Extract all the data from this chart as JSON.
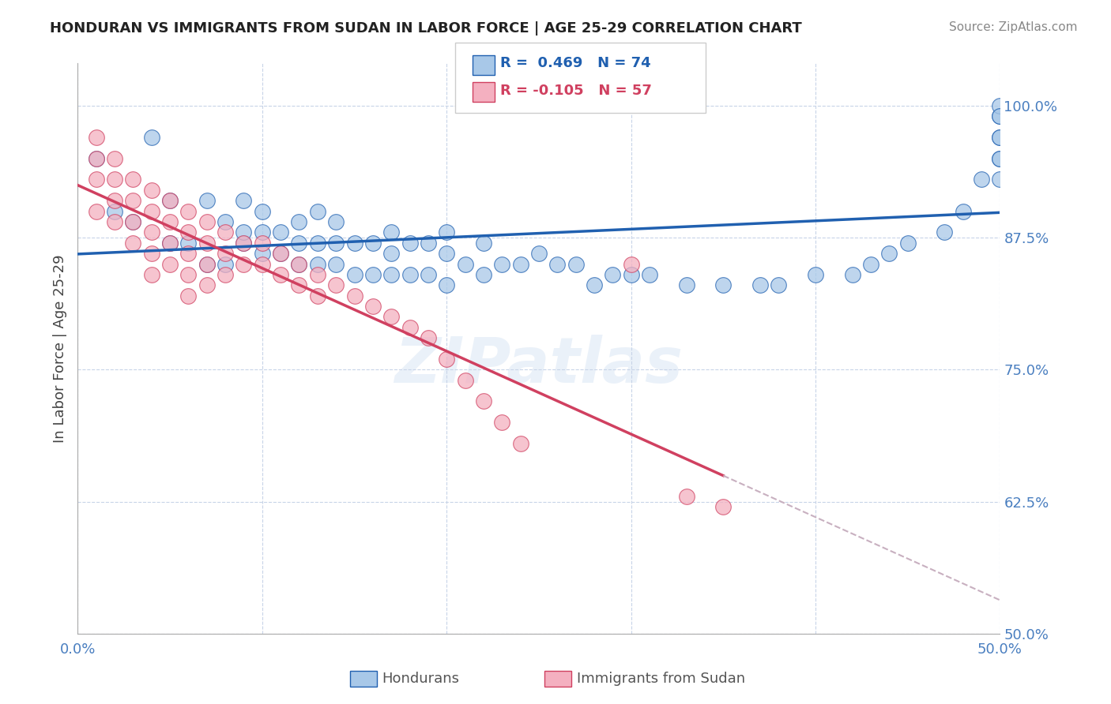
{
  "title": "HONDURAN VS IMMIGRANTS FROM SUDAN IN LABOR FORCE | AGE 25-29 CORRELATION CHART",
  "source": "Source: ZipAtlas.com",
  "ylabel": "In Labor Force | Age 25-29",
  "xlim": [
    0.0,
    0.5
  ],
  "ylim": [
    0.5,
    1.04
  ],
  "xticks": [
    0.0,
    0.1,
    0.2,
    0.3,
    0.4,
    0.5
  ],
  "xtick_labels": [
    "0.0%",
    "",
    "",
    "",
    "",
    "50.0%"
  ],
  "ytick_labels_right": [
    "50.0%",
    "62.5%",
    "75.0%",
    "87.5%",
    "100.0%"
  ],
  "yticks_right": [
    0.5,
    0.625,
    0.75,
    0.875,
    1.0
  ],
  "blue_color": "#a8c8e8",
  "pink_color": "#f4b0c0",
  "blue_line_color": "#2060b0",
  "pink_line_color": "#d04060",
  "dashed_line_color": "#c8b0c0",
  "blue_dots_x": [
    0.01,
    0.02,
    0.03,
    0.04,
    0.05,
    0.05,
    0.06,
    0.07,
    0.07,
    0.08,
    0.08,
    0.09,
    0.09,
    0.09,
    0.1,
    0.1,
    0.1,
    0.11,
    0.11,
    0.12,
    0.12,
    0.12,
    0.13,
    0.13,
    0.13,
    0.14,
    0.14,
    0.14,
    0.15,
    0.15,
    0.16,
    0.16,
    0.17,
    0.17,
    0.17,
    0.18,
    0.18,
    0.19,
    0.19,
    0.2,
    0.2,
    0.2,
    0.21,
    0.22,
    0.22,
    0.23,
    0.24,
    0.25,
    0.26,
    0.27,
    0.28,
    0.29,
    0.3,
    0.31,
    0.33,
    0.35,
    0.37,
    0.38,
    0.4,
    0.42,
    0.43,
    0.44,
    0.45,
    0.47,
    0.48,
    0.49,
    0.5,
    0.5,
    0.5,
    0.5,
    0.5,
    0.5,
    0.5,
    0.5
  ],
  "blue_dots_y": [
    0.95,
    0.9,
    0.89,
    0.97,
    0.87,
    0.91,
    0.87,
    0.85,
    0.91,
    0.85,
    0.89,
    0.87,
    0.88,
    0.91,
    0.86,
    0.88,
    0.9,
    0.86,
    0.88,
    0.85,
    0.87,
    0.89,
    0.85,
    0.87,
    0.9,
    0.85,
    0.87,
    0.89,
    0.84,
    0.87,
    0.84,
    0.87,
    0.84,
    0.86,
    0.88,
    0.84,
    0.87,
    0.84,
    0.87,
    0.83,
    0.86,
    0.88,
    0.85,
    0.84,
    0.87,
    0.85,
    0.85,
    0.86,
    0.85,
    0.85,
    0.83,
    0.84,
    0.84,
    0.84,
    0.83,
    0.83,
    0.83,
    0.83,
    0.84,
    0.84,
    0.85,
    0.86,
    0.87,
    0.88,
    0.9,
    0.93,
    0.95,
    0.97,
    0.99,
    1.0,
    0.99,
    0.97,
    0.95,
    0.93
  ],
  "pink_dots_x": [
    0.01,
    0.01,
    0.01,
    0.01,
    0.02,
    0.02,
    0.02,
    0.02,
    0.03,
    0.03,
    0.03,
    0.03,
    0.04,
    0.04,
    0.04,
    0.04,
    0.04,
    0.05,
    0.05,
    0.05,
    0.05,
    0.06,
    0.06,
    0.06,
    0.06,
    0.06,
    0.07,
    0.07,
    0.07,
    0.07,
    0.08,
    0.08,
    0.08,
    0.09,
    0.09,
    0.1,
    0.1,
    0.11,
    0.11,
    0.12,
    0.12,
    0.13,
    0.13,
    0.14,
    0.15,
    0.16,
    0.17,
    0.18,
    0.19,
    0.2,
    0.21,
    0.22,
    0.23,
    0.24,
    0.3,
    0.33,
    0.35
  ],
  "pink_dots_y": [
    0.97,
    0.95,
    0.93,
    0.9,
    0.95,
    0.93,
    0.91,
    0.89,
    0.93,
    0.91,
    0.89,
    0.87,
    0.92,
    0.9,
    0.88,
    0.86,
    0.84,
    0.91,
    0.89,
    0.87,
    0.85,
    0.9,
    0.88,
    0.86,
    0.84,
    0.82,
    0.89,
    0.87,
    0.85,
    0.83,
    0.88,
    0.86,
    0.84,
    0.87,
    0.85,
    0.87,
    0.85,
    0.86,
    0.84,
    0.85,
    0.83,
    0.84,
    0.82,
    0.83,
    0.82,
    0.81,
    0.8,
    0.79,
    0.78,
    0.76,
    0.74,
    0.72,
    0.7,
    0.68,
    0.85,
    0.63,
    0.62
  ],
  "background_color": "#ffffff",
  "grid_color": "#c8d4e8",
  "title_color": "#222222",
  "axis_label_color": "#444444",
  "right_tick_color": "#4a7fc0",
  "legend_text_color_blue": "#2060b0",
  "legend_text_color_pink": "#d04060"
}
